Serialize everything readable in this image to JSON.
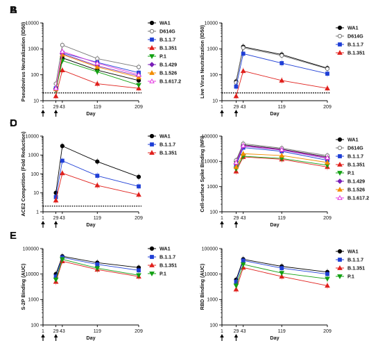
{
  "chart_data": [
    {
      "type": "line",
      "panel": "A",
      "ylabel": "Pseudovirus Neutralization (ID50)",
      "xlabel": "Day",
      "x": [
        1,
        29,
        43,
        119,
        209
      ],
      "x_ticks": [
        "1",
        "29",
        "43",
        "119",
        "209"
      ],
      "y_scale": "log",
      "ylim": [
        10,
        10000
      ],
      "y_ticks": [
        "10",
        "100",
        "1000",
        "10000"
      ],
      "threshold": 20,
      "legend_position": "right",
      "arrows_at": [
        1,
        29
      ],
      "series": [
        {
          "name": "WA1",
          "x": [
            29,
            43,
            119,
            209
          ],
          "values": [
            30,
            450,
            150,
            60
          ],
          "color": "#000000",
          "marker": "circle",
          "fill": true
        },
        {
          "name": "D614G",
          "x": [
            29,
            43,
            119,
            209
          ],
          "values": [
            45,
            1400,
            420,
            200
          ],
          "color": "#777777",
          "marker": "circle",
          "fill": false
        },
        {
          "name": "B.1.1.7",
          "x": [
            29,
            43,
            119,
            209
          ],
          "values": [
            30,
            700,
            300,
            120
          ],
          "color": "#1f3fd6",
          "marker": "square",
          "fill": true
        },
        {
          "name": "B.1.351",
          "x": [
            29,
            43,
            119,
            209
          ],
          "values": [
            15,
            150,
            45,
            30
          ],
          "color": "#e0201c",
          "marker": "triangle",
          "fill": true
        },
        {
          "name": "P.1",
          "x": [
            29,
            43,
            119,
            209
          ],
          "values": [
            25,
            350,
            130,
            40
          ],
          "color": "#12a012",
          "marker": "triangle-down",
          "fill": true
        },
        {
          "name": "B.1.429",
          "x": [
            29,
            43,
            119,
            209
          ],
          "values": [
            28,
            650,
            220,
            90
          ],
          "color": "#7a1fb8",
          "marker": "diamond",
          "fill": true
        },
        {
          "name": "B.1.526",
          "x": [
            29,
            43,
            119,
            209
          ],
          "values": [
            28,
            600,
            200,
            80
          ],
          "color": "#f28c00",
          "marker": "triangle",
          "fill": true
        },
        {
          "name": "B.1.617.2",
          "x": [
            29,
            43,
            119,
            209
          ],
          "values": [
            30,
            800,
            280,
            100
          ],
          "color": "#e43ae0",
          "marker": "triangle",
          "fill": false
        }
      ]
    },
    {
      "type": "line",
      "panel": "B",
      "ylabel": "Live Virus Neutralization (ID50)",
      "xlabel": "Day",
      "x": [
        1,
        29,
        43,
        119,
        209
      ],
      "x_ticks": [
        "1",
        "29",
        "43",
        "119",
        "209"
      ],
      "y_scale": "log",
      "ylim": [
        10,
        10000
      ],
      "y_ticks": [
        "10",
        "100",
        "1000",
        "10000"
      ],
      "threshold": 20,
      "legend_position": "right",
      "arrows_at": [
        1,
        29
      ],
      "series": [
        {
          "name": "WA1",
          "x": [
            29,
            43,
            119,
            209
          ],
          "values": [
            55,
            1200,
            600,
            180
          ],
          "color": "#000000",
          "marker": "circle",
          "fill": true
        },
        {
          "name": "D614G",
          "x": [
            29,
            43,
            119,
            209
          ],
          "values": [
            50,
            1100,
            550,
            170
          ],
          "color": "#777777",
          "marker": "circle",
          "fill": false
        },
        {
          "name": "B.1.1.7",
          "x": [
            29,
            43,
            119,
            209
          ],
          "values": [
            35,
            650,
            280,
            110
          ],
          "color": "#1f3fd6",
          "marker": "square",
          "fill": true
        },
        {
          "name": "B.1.351",
          "x": [
            29,
            43,
            119,
            209
          ],
          "values": [
            15,
            140,
            60,
            30
          ],
          "color": "#e0201c",
          "marker": "triangle",
          "fill": true
        }
      ]
    },
    {
      "type": "line",
      "panel": "C",
      "ylabel": "ACE2 Competition (Fold Reduction)",
      "xlabel": "Day",
      "x": [
        1,
        29,
        43,
        119,
        209
      ],
      "x_ticks": [
        "1",
        "29",
        "43",
        "119",
        "209"
      ],
      "y_scale": "log",
      "ylim": [
        1,
        10000
      ],
      "y_ticks": [
        "1",
        "10",
        "100",
        "1000",
        "10000"
      ],
      "threshold": 2,
      "legend_position": "right",
      "arrows_at": [
        1,
        29
      ],
      "series": [
        {
          "name": "WA1",
          "x": [
            29,
            43,
            119,
            209
          ],
          "values": [
            10,
            3000,
            450,
            70
          ],
          "color": "#000000",
          "marker": "circle",
          "fill": true
        },
        {
          "name": "B.1.1.7",
          "x": [
            29,
            43,
            119,
            209
          ],
          "values": [
            6,
            500,
            80,
            22
          ],
          "color": "#1f3fd6",
          "marker": "square",
          "fill": true
        },
        {
          "name": "B.1.351",
          "x": [
            29,
            43,
            119,
            209
          ],
          "values": [
            4,
            110,
            25,
            8
          ],
          "color": "#e0201c",
          "marker": "triangle",
          "fill": true
        }
      ]
    },
    {
      "type": "line",
      "panel": "D",
      "ylabel": "Cell-surface Spike Binding (MFI)",
      "xlabel": "Day",
      "x": [
        1,
        29,
        43,
        119,
        209
      ],
      "x_ticks": [
        "1",
        "29",
        "43",
        "119",
        "209"
      ],
      "y_scale": "log",
      "ylim": [
        100,
        100000
      ],
      "y_ticks": [
        "100",
        "1000",
        "10000",
        "100000"
      ],
      "legend_position": "right",
      "arrows_at": [
        1,
        29
      ],
      "series": [
        {
          "name": "WA1",
          "x": [
            29,
            43,
            119,
            209
          ],
          "values": [
            10000,
            45000,
            30000,
            15000
          ],
          "color": "#000000",
          "marker": "circle",
          "fill": true
        },
        {
          "name": "D614G",
          "x": [
            29,
            43,
            119,
            209
          ],
          "values": [
            11000,
            50000,
            33000,
            17000
          ],
          "color": "#777777",
          "marker": "circle",
          "fill": false
        },
        {
          "name": "B.1.1.7",
          "x": [
            29,
            43,
            119,
            209
          ],
          "values": [
            7000,
            35000,
            25000,
            11000
          ],
          "color": "#1f3fd6",
          "marker": "square",
          "fill": true
        },
        {
          "name": "B.1.351",
          "x": [
            29,
            43,
            119,
            209
          ],
          "values": [
            4000,
            15000,
            12000,
            6000
          ],
          "color": "#e0201c",
          "marker": "triangle",
          "fill": true
        },
        {
          "name": "P.1",
          "x": [
            29,
            43,
            119,
            209
          ],
          "values": [
            5000,
            16000,
            13000,
            7000
          ],
          "color": "#12a012",
          "marker": "triangle-down",
          "fill": true
        },
        {
          "name": "B.1.429",
          "x": [
            29,
            43,
            119,
            209
          ],
          "values": [
            8000,
            40000,
            28000,
            13000
          ],
          "color": "#7a1fb8",
          "marker": "diamond",
          "fill": true
        },
        {
          "name": "B.1.526",
          "x": [
            29,
            43,
            119,
            209
          ],
          "values": [
            6000,
            20000,
            17000,
            9000
          ],
          "color": "#f28c00",
          "marker": "triangle",
          "fill": true
        },
        {
          "name": "B.1.617.2",
          "x": [
            29,
            43,
            119,
            209
          ],
          "values": [
            9000,
            42000,
            29000,
            14000
          ],
          "color": "#e43ae0",
          "marker": "triangle",
          "fill": false
        }
      ]
    },
    {
      "type": "line",
      "panel": "E",
      "ylabel": "S-2P Binding (AUC)",
      "xlabel": "Day",
      "x": [
        1,
        29,
        43,
        119,
        209
      ],
      "x_ticks": [
        "1",
        "29",
        "43",
        "119",
        "209"
      ],
      "y_scale": "log",
      "ylim": [
        100,
        100000
      ],
      "y_ticks": [
        "100",
        "1000",
        "10000",
        "100000"
      ],
      "legend_position": "right",
      "arrows_at": [
        1,
        29
      ],
      "series": [
        {
          "name": "WA1",
          "x": [
            29,
            43,
            119,
            209
          ],
          "values": [
            10000,
            50000,
            28000,
            18000
          ],
          "color": "#000000",
          "marker": "circle",
          "fill": true
        },
        {
          "name": "B.1.1.7",
          "x": [
            29,
            43,
            119,
            209
          ],
          "values": [
            8000,
            45000,
            24000,
            14000
          ],
          "color": "#1f3fd6",
          "marker": "square",
          "fill": true
        },
        {
          "name": "B.1.351",
          "x": [
            29,
            43,
            119,
            209
          ],
          "values": [
            5000,
            32000,
            15000,
            8000
          ],
          "color": "#e0201c",
          "marker": "triangle",
          "fill": true
        },
        {
          "name": "P.1",
          "x": [
            29,
            43,
            119,
            209
          ],
          "values": [
            6000,
            38000,
            17000,
            9000
          ],
          "color": "#12a012",
          "marker": "triangle-down",
          "fill": true
        }
      ]
    },
    {
      "type": "line",
      "panel": "F",
      "ylabel": "RBD Binding (AUC)",
      "xlabel": "Day",
      "x": [
        1,
        29,
        43,
        119,
        209
      ],
      "x_ticks": [
        "1",
        "29",
        "43",
        "119",
        "209"
      ],
      "y_scale": "log",
      "ylim": [
        100,
        100000
      ],
      "y_ticks": [
        "100",
        "1000",
        "10000",
        "100000"
      ],
      "legend_position": "right",
      "arrows_at": [
        1,
        29
      ],
      "series": [
        {
          "name": "WA1",
          "x": [
            29,
            43,
            119,
            209
          ],
          "values": [
            6000,
            38000,
            20000,
            12000
          ],
          "color": "#000000",
          "marker": "circle",
          "fill": true
        },
        {
          "name": "B.1.1.7",
          "x": [
            29,
            43,
            119,
            209
          ],
          "values": [
            5000,
            34000,
            17000,
            10000
          ],
          "color": "#1f3fd6",
          "marker": "square",
          "fill": true
        },
        {
          "name": "B.1.351",
          "x": [
            29,
            43,
            119,
            209
          ],
          "values": [
            2500,
            18000,
            8000,
            3500
          ],
          "color": "#e0201c",
          "marker": "triangle",
          "fill": true
        },
        {
          "name": "P.1",
          "x": [
            29,
            43,
            119,
            209
          ],
          "values": [
            3500,
            24000,
            11000,
            6500
          ],
          "color": "#12a012",
          "marker": "triangle-down",
          "fill": true
        }
      ]
    }
  ]
}
